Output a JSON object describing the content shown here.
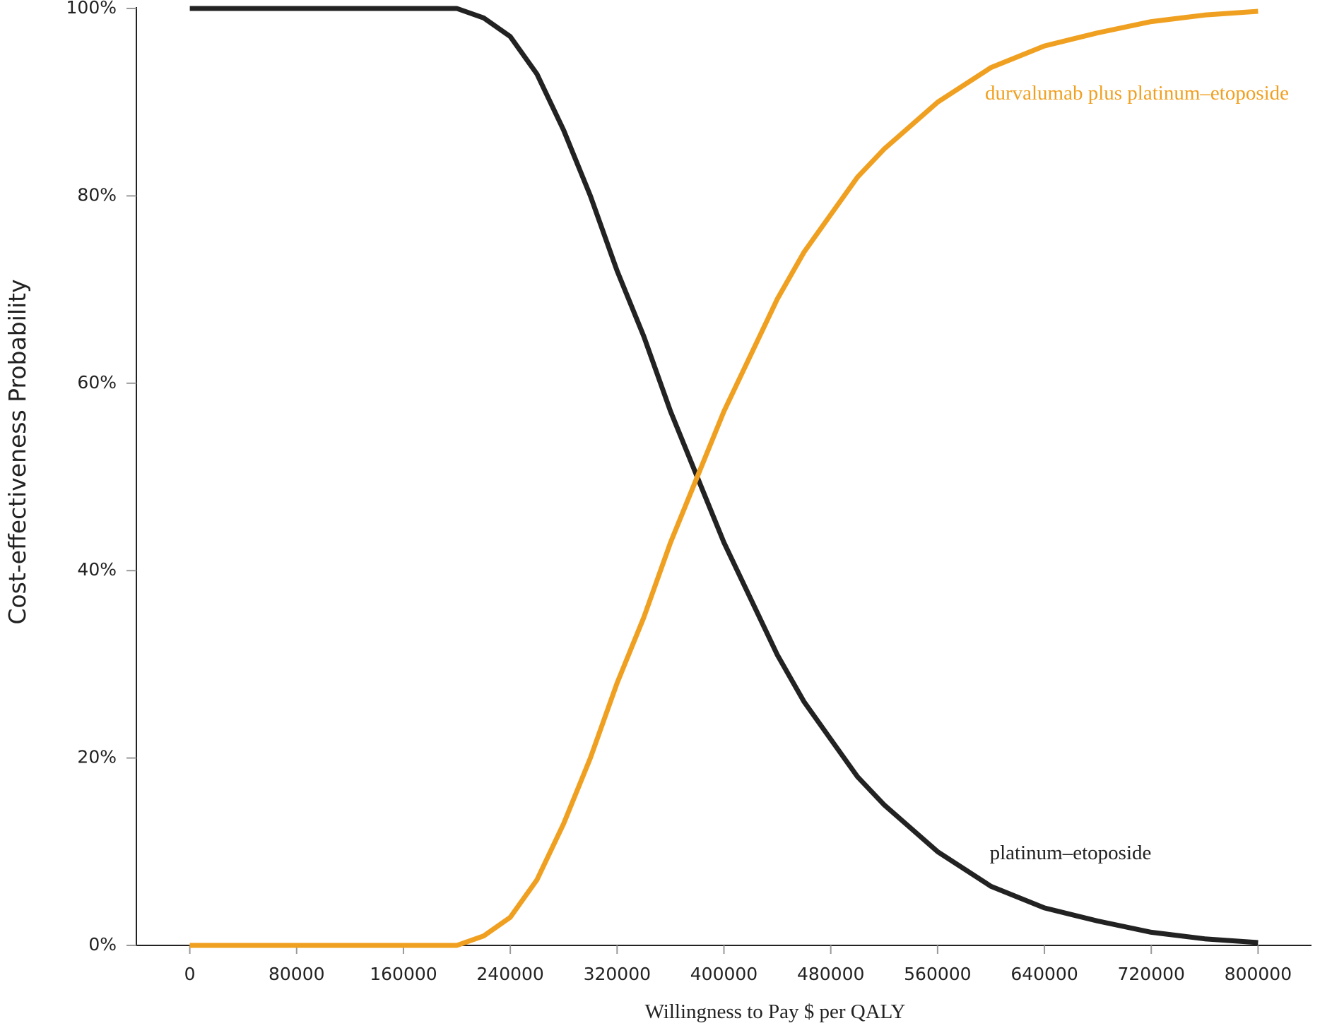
{
  "chart_data": {
    "type": "line",
    "x_label": "Willingness to Pay $ per QALY",
    "y_label": "Cost-effectiveness Probability",
    "x": [
      0,
      40000,
      80000,
      120000,
      160000,
      200000,
      220000,
      240000,
      260000,
      280000,
      300000,
      320000,
      340000,
      360000,
      380000,
      400000,
      420000,
      440000,
      460000,
      480000,
      500000,
      520000,
      560000,
      600000,
      640000,
      680000,
      720000,
      760000,
      800000
    ],
    "series": [
      {
        "name": "platinum–etoposide",
        "color": "#222222",
        "values": [
          100,
          100,
          100,
          100,
          100,
          100,
          99,
          97,
          93,
          87,
          80,
          72,
          65,
          57,
          50,
          43,
          37,
          31,
          26,
          22,
          18,
          15,
          10,
          6.3,
          4,
          2.6,
          1.4,
          0.7,
          0.3
        ]
      },
      {
        "name": "durvalumab plus platinum–etoposide",
        "color": "#f0a020",
        "values": [
          0,
          0,
          0,
          0,
          0,
          0,
          1,
          3,
          7,
          13,
          20,
          28,
          35,
          43,
          50,
          57,
          63,
          69,
          74,
          78,
          82,
          85,
          90,
          93.7,
          96,
          97.4,
          98.6,
          99.3,
          99.7
        ]
      }
    ],
    "xlim": [
      -40000,
      840000
    ],
    "xticks": [
      0,
      80000,
      160000,
      240000,
      320000,
      400000,
      480000,
      560000,
      640000,
      720000,
      800000
    ],
    "ylim": [
      0,
      100
    ],
    "yticks": [
      {
        "value": 0,
        "label": "0%"
      },
      {
        "value": 20,
        "label": "20%"
      },
      {
        "value": 40,
        "label": "40%"
      },
      {
        "value": 60,
        "label": "60%"
      },
      {
        "value": 80,
        "label": "80%"
      },
      {
        "value": 100,
        "label": "100%"
      }
    ]
  }
}
